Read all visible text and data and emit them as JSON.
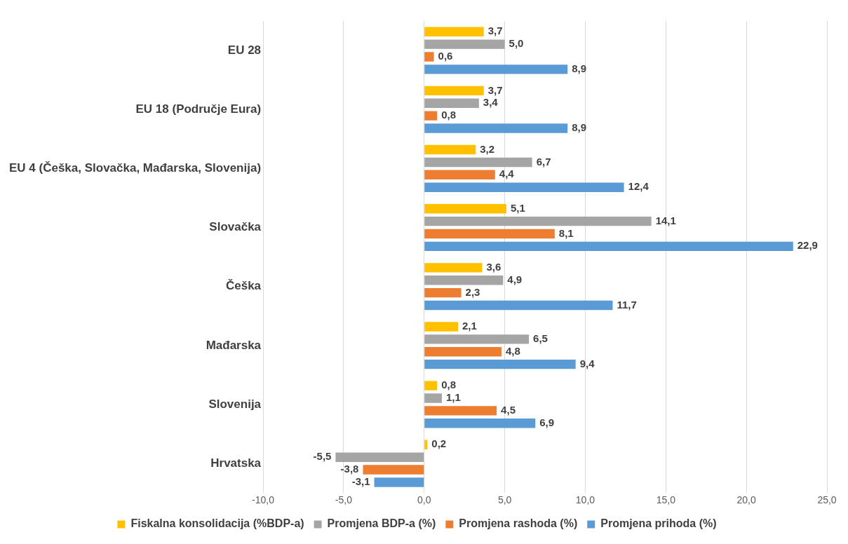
{
  "chart_data": {
    "type": "bar",
    "orientation": "horizontal",
    "categories": [
      "EU 28",
      "EU 18 (Područje Eura)",
      "EU 4 (Češka, Slovačka, Mađarska, Slovenija)",
      "Slovačka",
      "Češka",
      "Mađarska",
      "Slovenija",
      "Hrvatska"
    ],
    "series": [
      {
        "name": "Fiskalna konsolidacija (%BDP-a)",
        "color": "#ffc000",
        "values": [
          3.7,
          3.7,
          3.2,
          5.1,
          3.6,
          2.1,
          0.8,
          0.2
        ],
        "value_labels": [
          "3,7",
          "3,7",
          "3,2",
          "5,1",
          "3,6",
          "2,1",
          "0,8",
          "0,2"
        ]
      },
      {
        "name": "Promjena BDP-a (%)",
        "color": "#a5a5a5",
        "values": [
          5.0,
          3.4,
          6.7,
          14.1,
          4.9,
          6.5,
          1.1,
          -5.5
        ],
        "value_labels": [
          "5,0",
          "3,4",
          "6,7",
          "14,1",
          "4,9",
          "6,5",
          "1,1",
          "-5,5"
        ]
      },
      {
        "name": "Promjena rashoda (%)",
        "color": "#ed7d31",
        "values": [
          0.6,
          0.8,
          4.4,
          8.1,
          2.3,
          4.8,
          4.5,
          -3.8
        ],
        "value_labels": [
          "0,6",
          "0,8",
          "4,4",
          "8,1",
          "2,3",
          "4,8",
          "4,5",
          "-3,8"
        ]
      },
      {
        "name": "Promjena prihoda (%)",
        "color": "#5b9bd5",
        "values": [
          8.9,
          8.9,
          12.4,
          22.9,
          11.7,
          9.4,
          6.9,
          -3.1
        ],
        "value_labels": [
          "8,9",
          "8,9",
          "12,4",
          "22,9",
          "11,7",
          "9,4",
          "6,9",
          "-3,1"
        ]
      }
    ],
    "xlim": [
      -10,
      25
    ],
    "xticks": [
      {
        "value": -10,
        "label": "-10,0"
      },
      {
        "value": -5,
        "label": "-5,0"
      },
      {
        "value": 0,
        "label": "0,0"
      },
      {
        "value": 5,
        "label": "5,0"
      },
      {
        "value": 10,
        "label": "10,0"
      },
      {
        "value": 15,
        "label": "15,0"
      },
      {
        "value": 20,
        "label": "20,0"
      },
      {
        "value": 25,
        "label": "25,0"
      }
    ],
    "grid": "x",
    "legend": "bottom"
  }
}
